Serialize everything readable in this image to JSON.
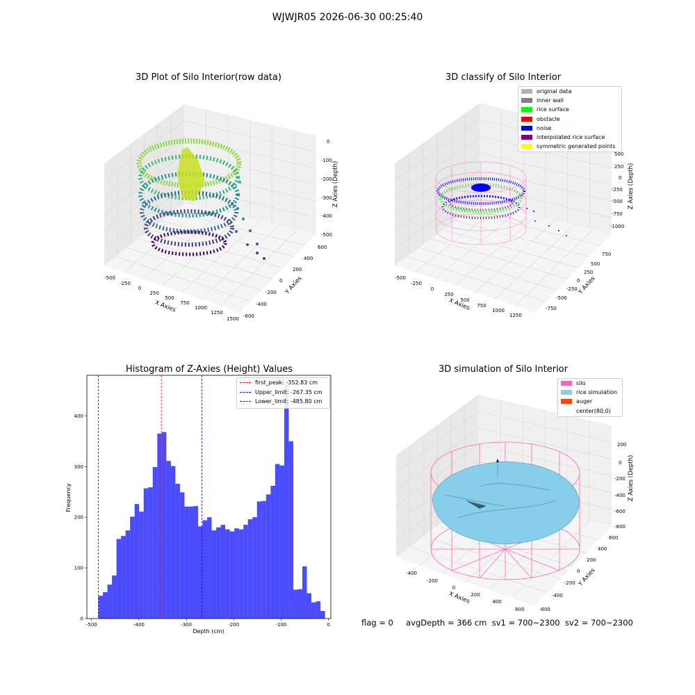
{
  "figure": {
    "suptitle": "WJWJR05 2026-06-30 00:25:40",
    "footer": "flag = 0     avgDepth = 366 cm  sv1 = 700~2300  sv2 = 700~2300"
  },
  "panels": {
    "raw": {
      "title": "3D Plot of Silo Interior(row data)",
      "xlabel": "X Axies",
      "ylabel": "Y Axies",
      "zlabel": "Z Axies (Depth)",
      "xticks": [
        "-500",
        "-250",
        "0",
        "250",
        "500",
        "750",
        "1000",
        "1250",
        "1500"
      ],
      "yticks": [
        "600",
        "400",
        "200",
        "0",
        "-200",
        "-400",
        "-600"
      ],
      "zticks": [
        "0",
        "-100",
        "-200",
        "-300",
        "-400",
        "-500"
      ]
    },
    "classify": {
      "title": "3D classify of Silo Interior",
      "xlabel": "X Axies",
      "ylabel": "Y Axies",
      "zlabel": "Z Axies (Depth)",
      "xticks": [
        "-500",
        "-250",
        "0",
        "250",
        "500",
        "750",
        "1000",
        "1250"
      ],
      "yticks": [
        "750",
        "500",
        "250",
        "0",
        "-250",
        "-500",
        "-750"
      ],
      "zticks": [
        "500",
        "250",
        "0",
        "-250",
        "-500",
        "-750",
        "-1000"
      ],
      "legend": [
        {
          "label": "original data",
          "color": "#b3b3b3"
        },
        {
          "label": "inner wall",
          "color": "#808080"
        },
        {
          "label": "rice surface",
          "color": "#00ff00"
        },
        {
          "label": "obstacle",
          "color": "#ff0000"
        },
        {
          "label": "noise",
          "color": "#0000ff"
        },
        {
          "label": "interpolated rice surface",
          "color": "#800080"
        },
        {
          "label": "symmetric generated points",
          "color": "#ffff00"
        }
      ]
    },
    "simulation": {
      "title": "3D simulation of Silo Interior",
      "xlabel": "X Axies",
      "ylabel": "Y Axies",
      "zlabel": "Z Axies (Depth)",
      "xticks": [
        "-400",
        "-200",
        "0",
        "200",
        "400",
        "600"
      ],
      "yticks": [
        "600",
        "400",
        "200",
        "0",
        "-200",
        "-400",
        "-600"
      ],
      "zticks": [
        "200",
        "0",
        "-200",
        "-400",
        "-600",
        "-800"
      ],
      "legend": [
        {
          "label": "silo",
          "color": "#ff69b4"
        },
        {
          "label": "rice simulation",
          "color": "#87ceeb"
        },
        {
          "label": "auger",
          "color": "#ff4500"
        },
        {
          "label": "center(80,0)",
          "color": ""
        }
      ]
    }
  },
  "chart_data": {
    "type": "bar",
    "title": "Histogram of Z-Axies (Height) Values",
    "xlabel": "Depth (cm)",
    "ylabel": "Frequency",
    "xlim": [
      -510,
      5
    ],
    "ylim": [
      0,
      480
    ],
    "xticks": [
      -500,
      -400,
      -300,
      -200,
      -100,
      0
    ],
    "yticks": [
      0,
      100,
      200,
      300,
      400
    ],
    "bin_start": -485.8,
    "bin_width": 9.57,
    "bar_color": "#0000ff",
    "values": [
      45,
      52,
      67,
      85,
      157,
      163,
      174,
      201,
      226,
      211,
      257,
      259,
      299,
      365,
      368,
      311,
      301,
      266,
      249,
      221,
      221,
      222,
      182,
      194,
      200,
      174,
      180,
      185,
      176,
      172,
      178,
      176,
      185,
      196,
      200,
      231,
      232,
      245,
      262,
      305,
      302,
      462,
      350,
      57,
      58,
      103,
      50,
      32,
      34,
      15
    ],
    "vlines": [
      {
        "label": "first_peak: -352.83 cm",
        "x": -352.83,
        "color": "#ff0000"
      },
      {
        "label": "Upper_limit: -267.35 cm",
        "x": -267.35,
        "color": "#0000ff"
      },
      {
        "label": "Lower_limit: -485.80 cm",
        "x": -485.8,
        "color": "#0000ff"
      }
    ],
    "legend_position": "top-right"
  }
}
